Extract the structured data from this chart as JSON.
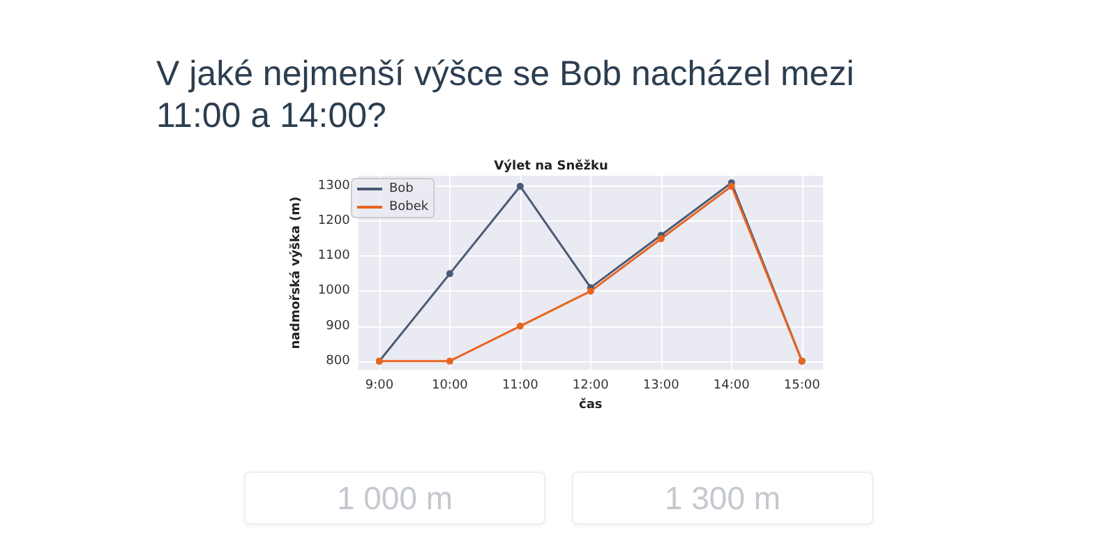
{
  "chart_data": {
    "type": "line",
    "title": "V jaké nejmenší výšce se Bob nacházel mezi 11:00 a 14:00?",
    "subtitle": "Výlet na Sněžku",
    "xlabel": "čas",
    "ylabel": "nadmořská výška (m)",
    "x": [
      9,
      10,
      11,
      12,
      13,
      14,
      15
    ],
    "xlim": [
      8.7,
      15.3
    ],
    "xticks": [
      {
        "value": 9,
        "label": "9:00"
      },
      {
        "value": 10,
        "label": "10:00"
      },
      {
        "value": 11,
        "label": "11:00"
      },
      {
        "value": 12,
        "label": "12:00"
      },
      {
        "value": 13,
        "label": "13:00"
      },
      {
        "value": 14,
        "label": "14:00"
      },
      {
        "value": 15,
        "label": "15:00"
      }
    ],
    "ylim": [
      775,
      1330
    ],
    "yticks": [
      800,
      900,
      1000,
      1100,
      1200,
      1300
    ],
    "series": [
      {
        "name": "Bob",
        "color": "#4a5a75",
        "values": [
          800,
          1050,
          1300,
          1010,
          1160,
          1310,
          800
        ]
      },
      {
        "name": "Bobek",
        "color": "#e8651f",
        "values": [
          800,
          800,
          900,
          1000,
          1150,
          1300,
          800
        ]
      }
    ],
    "annotations": [
      "1 000 m",
      "1 300 m"
    ],
    "grid": true,
    "legend": "top left",
    "marker": "circle",
    "line_style": "solid"
  }
}
